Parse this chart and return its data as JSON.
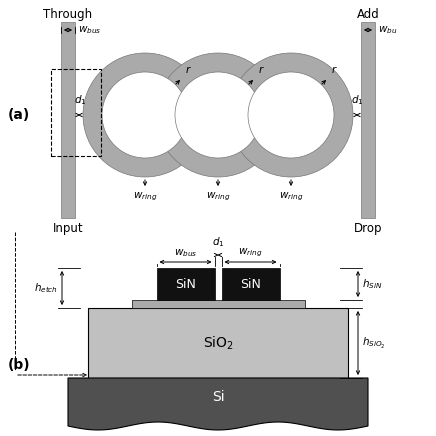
{
  "fig_width": 4.36,
  "fig_height": 4.36,
  "dpi": 100,
  "bg_color": "#ffffff",
  "gray_waveguide": "#aaaaaa",
  "SiN_color": "#111111",
  "SiO2_color": "#c0c0c0",
  "Si_color": "#505050",
  "panel_a_label": "(a)",
  "panel_b_label": "(b)",
  "through_label": "Through",
  "add_label": "Add",
  "input_label": "Input",
  "drop_label": "Drop",
  "SiN_text": "SiN",
  "SiO2_text": "SiO$_2$",
  "Si_text": "Si"
}
